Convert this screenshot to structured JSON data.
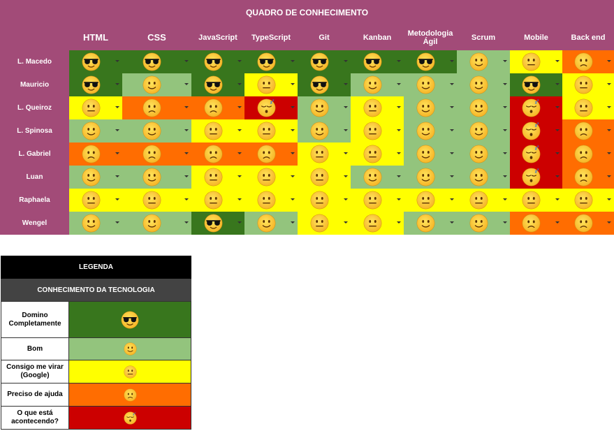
{
  "title": "QUADRO DE CONHECIMENTO",
  "columns": [
    "HTML",
    "CSS",
    "JavaScript",
    "TypeScript",
    "Git",
    "Kanban",
    "Metodologia Ágil",
    "Scrum",
    "Mobile",
    "Back end"
  ],
  "levels": {
    "domino": {
      "color": "#38761d",
      "icon": "sunglasses-face-icon"
    },
    "bom": {
      "color": "#93c47d",
      "icon": "smiling-face-icon"
    },
    "google": {
      "color": "#ffff00",
      "icon": "neutral-face-icon"
    },
    "ajuda": {
      "color": "#ff6d01",
      "icon": "worried-face-icon"
    },
    "perdido": {
      "color": "#cc0000",
      "icon": "sleepy-face-icon"
    }
  },
  "rows": [
    {
      "name": "L. Macedo",
      "cells": [
        "domino",
        "domino",
        "domino",
        "domino",
        "domino",
        "domino",
        "domino",
        "bom",
        "google",
        "ajuda"
      ]
    },
    {
      "name": "Mauricio",
      "cells": [
        "domino",
        "bom",
        "domino",
        "google",
        "domino",
        "bom",
        "bom",
        "bom",
        "domino",
        "google"
      ]
    },
    {
      "name": "L. Queiroz",
      "cells": [
        "google",
        "ajuda",
        "ajuda",
        "perdido",
        "bom",
        "google",
        "bom",
        "bom",
        "perdido",
        "google"
      ]
    },
    {
      "name": "L. Spinosa",
      "cells": [
        "bom",
        "bom",
        "google",
        "google",
        "bom",
        "google",
        "bom",
        "bom",
        "perdido",
        "ajuda"
      ]
    },
    {
      "name": "L. Gabriel",
      "cells": [
        "ajuda",
        "ajuda",
        "ajuda",
        "ajuda",
        "google",
        "google",
        "bom",
        "bom",
        "perdido",
        "ajuda"
      ]
    },
    {
      "name": "Luan",
      "cells": [
        "bom",
        "bom",
        "google",
        "google",
        "google",
        "bom",
        "bom",
        "bom",
        "perdido",
        "ajuda"
      ]
    },
    {
      "name": "Raphaela",
      "cells": [
        "google",
        "google",
        "google",
        "google",
        "google",
        "google",
        "google",
        "google",
        "google",
        "google"
      ]
    },
    {
      "name": "Wengel",
      "cells": [
        "bom",
        "bom",
        "domino",
        "bom",
        "google",
        "google",
        "bom",
        "bom",
        "ajuda",
        "ajuda"
      ]
    }
  ],
  "legend": {
    "title": "LEGENDA",
    "subtitle": "CONHECIMENTO DA TECNOLOGIA",
    "items": [
      {
        "key": "domino",
        "label": "Domino Completamente"
      },
      {
        "key": "bom",
        "label": "Bom"
      },
      {
        "key": "google",
        "label": "Consigo me virar (Google)"
      },
      {
        "key": "ajuda",
        "label": "Preciso de ajuda"
      },
      {
        "key": "perdido",
        "label": "O que está acontecendo?"
      }
    ]
  }
}
